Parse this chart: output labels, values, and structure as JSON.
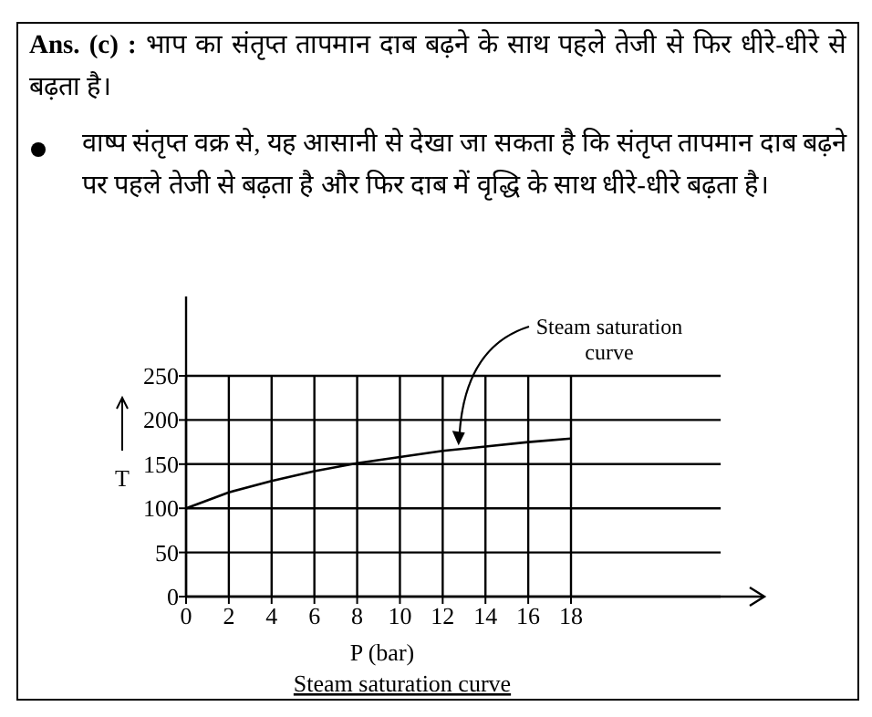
{
  "chart_data": {
    "type": "line",
    "title": "**Ans. (c) :** भाप का संतृप्त तापमान दाब बढ़ने के साथ पहले तेजी से फिर धीरे-धीरे से बढ़ता है।",
    "subtitle": "वाष्प संतृप्त वक्र से, यह आसानी से देखा जा सकता है कि संतृप्त तापमान दाब बढ़ने पर पहले तेजी से बढ़ता है और फिर दाब में वृद्धि के साथ धीरे-धीरे बढ़ता है।",
    "xlabel": "P (bar)",
    "ylabel": "T",
    "x": [
      0,
      2,
      4,
      6,
      8,
      10,
      12,
      14,
      16,
      18
    ],
    "values": [
      100,
      118,
      131,
      142,
      151,
      158,
      165,
      170,
      175,
      179
    ],
    "color": "#000000",
    "xlim": [
      0,
      25
    ],
    "ylim": [
      0,
      340
    ],
    "xticks": [
      0,
      2,
      4,
      6,
      8,
      10,
      12,
      14,
      16,
      18
    ],
    "yticks": [
      0,
      50,
      100,
      150,
      200,
      250
    ],
    "grid": true,
    "annotations": [
      {
        "text": "Steam saturation curve",
        "x": 12.7,
        "y": 167
      },
      "Steam saturation curve"
    ]
  }
}
